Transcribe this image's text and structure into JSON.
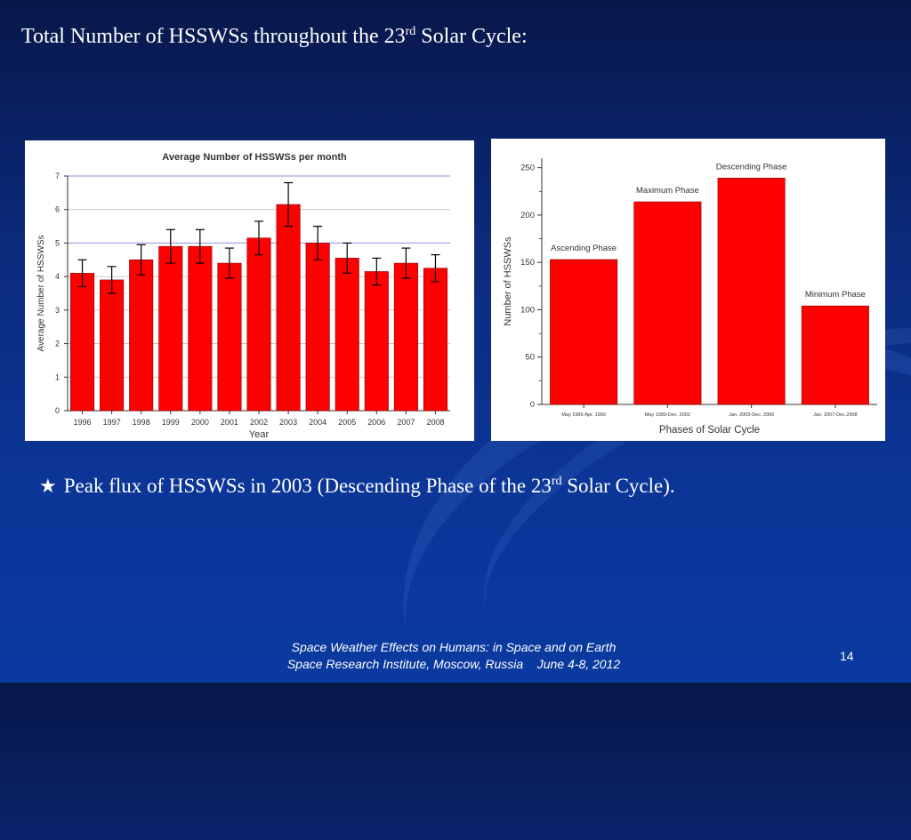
{
  "slide": {
    "title_main": "Total Number of HSSWSs throughout the 23",
    "title_sup": "rd",
    "title_end": " Solar Cycle:",
    "bullet_icon": "star-icon",
    "bullet_main": "Peak flux of HSSWSs in 2003 (Descending Phase of the 23",
    "bullet_sup": "rd",
    "bullet_end": " Solar Cycle).",
    "footer_line1": "Space Weather Effects on Humans: in Space and on Earth",
    "footer_line2": "Space Research Institute, Moscow, Russia    June 4-8, 2012",
    "page_number": "14"
  },
  "chart_data": [
    {
      "type": "bar",
      "title": "Average Number of HSSWSs per month",
      "xlabel": "Year",
      "ylabel": "Average Number of HSSWSs",
      "categories": [
        "1996",
        "1997",
        "1998",
        "1999",
        "2000",
        "2001",
        "2002",
        "2003",
        "2004",
        "2005",
        "2006",
        "2007",
        "2008"
      ],
      "values": [
        4.1,
        3.9,
        4.5,
        4.9,
        4.9,
        4.4,
        5.15,
        6.15,
        5.0,
        4.55,
        4.15,
        4.4,
        4.25
      ],
      "errors": [
        0.4,
        0.4,
        0.45,
        0.5,
        0.5,
        0.45,
        0.5,
        0.65,
        0.5,
        0.45,
        0.4,
        0.45,
        0.4
      ],
      "ylim": [
        0,
        7
      ],
      "yticks": [
        0,
        1,
        2,
        3,
        4,
        5,
        6,
        7
      ],
      "grid": true,
      "colors": {
        "bar": "#ff0000",
        "grid": "#8f8fe0",
        "title": "#333333"
      }
    },
    {
      "type": "bar",
      "title": "",
      "xlabel": "Phases of Solar Cycle",
      "ylabel": "Number of HSSWSs",
      "categories": [
        "May 1996-Apr. 1999",
        "May 1999-Dec. 2002",
        "Jan. 2003-Dec. 2006",
        "Jan. 2007-Dec.2008"
      ],
      "annotations": [
        "Ascending Phase",
        "Maximum Phase",
        "Descending Phase",
        "Minimum Phase"
      ],
      "values": [
        153,
        214,
        239,
        104
      ],
      "ylim": [
        0,
        260
      ],
      "yticks": [
        0,
        50,
        100,
        150,
        200,
        250
      ],
      "grid": false,
      "colors": {
        "bar": "#ff0000"
      }
    }
  ]
}
